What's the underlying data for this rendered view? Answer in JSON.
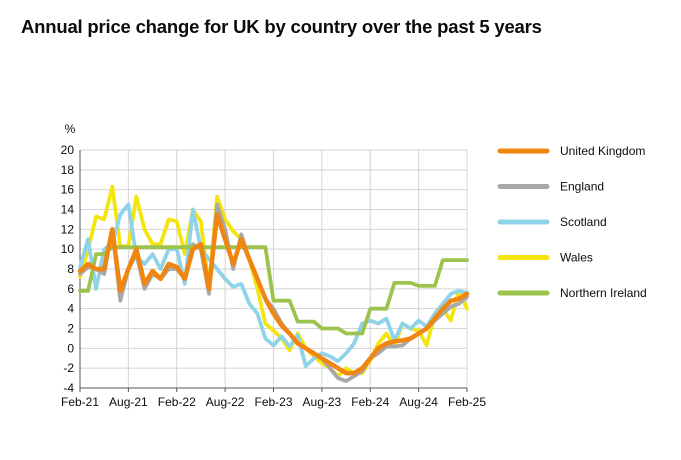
{
  "chart_data": {
    "type": "line",
    "title": "Annual price change for UK by country over the past 5 years",
    "ylabel": "%",
    "xlabel": "",
    "ylim": [
      -4,
      20
    ],
    "yticks": [
      -4,
      -2,
      0,
      2,
      4,
      6,
      8,
      10,
      12,
      14,
      16,
      18,
      20
    ],
    "x_tick_labels": [
      "Feb-21",
      "Aug-21",
      "Feb-22",
      "Aug-22",
      "Feb-23",
      "Aug-23",
      "Feb-24",
      "Aug-24",
      "Feb-25"
    ],
    "x_tick_index": [
      0,
      6,
      12,
      18,
      24,
      30,
      36,
      42,
      48
    ],
    "grid": true,
    "legend_position": "right",
    "x_count": 49,
    "series": [
      {
        "name": "Wales",
        "color": "#f4e510",
        "values": [
          7.2,
          10.0,
          13.3,
          13.0,
          16.3,
          10.3,
          10.3,
          15.3,
          12.0,
          10.5,
          10.5,
          13.0,
          12.8,
          9.5,
          14.0,
          12.8,
          6.0,
          15.3,
          13.0,
          11.8,
          11.0,
          9.0,
          6.0,
          2.5,
          1.8,
          1.0,
          -0.2,
          1.5,
          0.0,
          -0.8,
          -1.5,
          -2.0,
          -2.8,
          -2.0,
          -2.5,
          -2.5,
          -1.2,
          0.5,
          1.5,
          0.2,
          2.5,
          2.0,
          1.8,
          0.3,
          3.5,
          4.0,
          2.8,
          5.8,
          4.0
        ]
      },
      {
        "name": "Scotland",
        "color": "#8fd3e8",
        "values": [
          8.2,
          11.0,
          6.0,
          10.0,
          10.5,
          13.5,
          14.5,
          9.2,
          8.5,
          9.5,
          8.0,
          10.0,
          10.0,
          6.5,
          14.0,
          10.0,
          9.0,
          8.0,
          7.0,
          6.2,
          6.5,
          4.5,
          3.5,
          1.0,
          0.3,
          1.2,
          0.2,
          1.3,
          -1.8,
          -1.0,
          -0.5,
          -0.8,
          -1.3,
          -0.5,
          0.5,
          2.5,
          2.8,
          2.5,
          3.0,
          0.8,
          2.5,
          2.0,
          2.8,
          2.2,
          3.5,
          4.5,
          5.5,
          5.8,
          5.6
        ]
      },
      {
        "name": "England",
        "color": "#a8a8a8",
        "values": [
          7.5,
          8.2,
          8.0,
          7.5,
          12.0,
          4.8,
          8.0,
          9.5,
          6.0,
          7.5,
          7.0,
          8.0,
          8.0,
          7.0,
          10.5,
          10.0,
          5.5,
          14.5,
          12.0,
          8.0,
          11.5,
          9.0,
          7.0,
          5.0,
          4.0,
          2.5,
          1.5,
          0.5,
          0.0,
          -0.5,
          -1.0,
          -2.0,
          -3.0,
          -3.3,
          -2.8,
          -2.3,
          -1.0,
          -0.5,
          0.2,
          0.2,
          0.3,
          1.0,
          1.5,
          2.0,
          2.8,
          3.5,
          4.2,
          4.5,
          5.2
        ]
      },
      {
        "name": "Northern Ireland",
        "color": "#9dc34f",
        "values": [
          5.8,
          5.8,
          9.5,
          9.5,
          10.2,
          10.2,
          10.2,
          10.2,
          10.2,
          10.2,
          10.2,
          10.2,
          10.2,
          10.2,
          10.2,
          10.2,
          10.2,
          10.2,
          10.2,
          10.2,
          10.2,
          10.2,
          10.2,
          10.2,
          4.8,
          4.8,
          4.8,
          2.7,
          2.7,
          2.7,
          2.0,
          2.0,
          2.0,
          1.5,
          1.5,
          1.5,
          4.0,
          4.0,
          4.0,
          6.6,
          6.6,
          6.6,
          6.3,
          6.3,
          6.3,
          8.9,
          8.9,
          8.9,
          8.9
        ]
      },
      {
        "name": "United Kingdom",
        "color": "#f0860f",
        "values": [
          7.8,
          8.5,
          8.0,
          8.0,
          12.0,
          5.8,
          8.0,
          10.0,
          6.5,
          7.8,
          7.0,
          8.5,
          8.2,
          7.0,
          10.0,
          10.5,
          6.0,
          13.5,
          11.0,
          8.5,
          11.0,
          9.0,
          7.0,
          5.0,
          3.5,
          2.3,
          1.5,
          0.5,
          0.0,
          -0.5,
          -1.0,
          -1.5,
          -2.0,
          -2.5,
          -2.5,
          -2.0,
          -1.0,
          0.0,
          0.5,
          0.7,
          0.8,
          1.0,
          1.5,
          2.0,
          3.0,
          4.0,
          4.8,
          5.0,
          5.5
        ]
      }
    ],
    "legend": [
      {
        "label": "United Kingdom",
        "color": "#f0860f"
      },
      {
        "label": "England",
        "color": "#a8a8a8"
      },
      {
        "label": "Scotland",
        "color": "#8fd3e8"
      },
      {
        "label": "Wales",
        "color": "#f4e510"
      },
      {
        "label": "Northern Ireland",
        "color": "#9dc34f"
      }
    ]
  }
}
